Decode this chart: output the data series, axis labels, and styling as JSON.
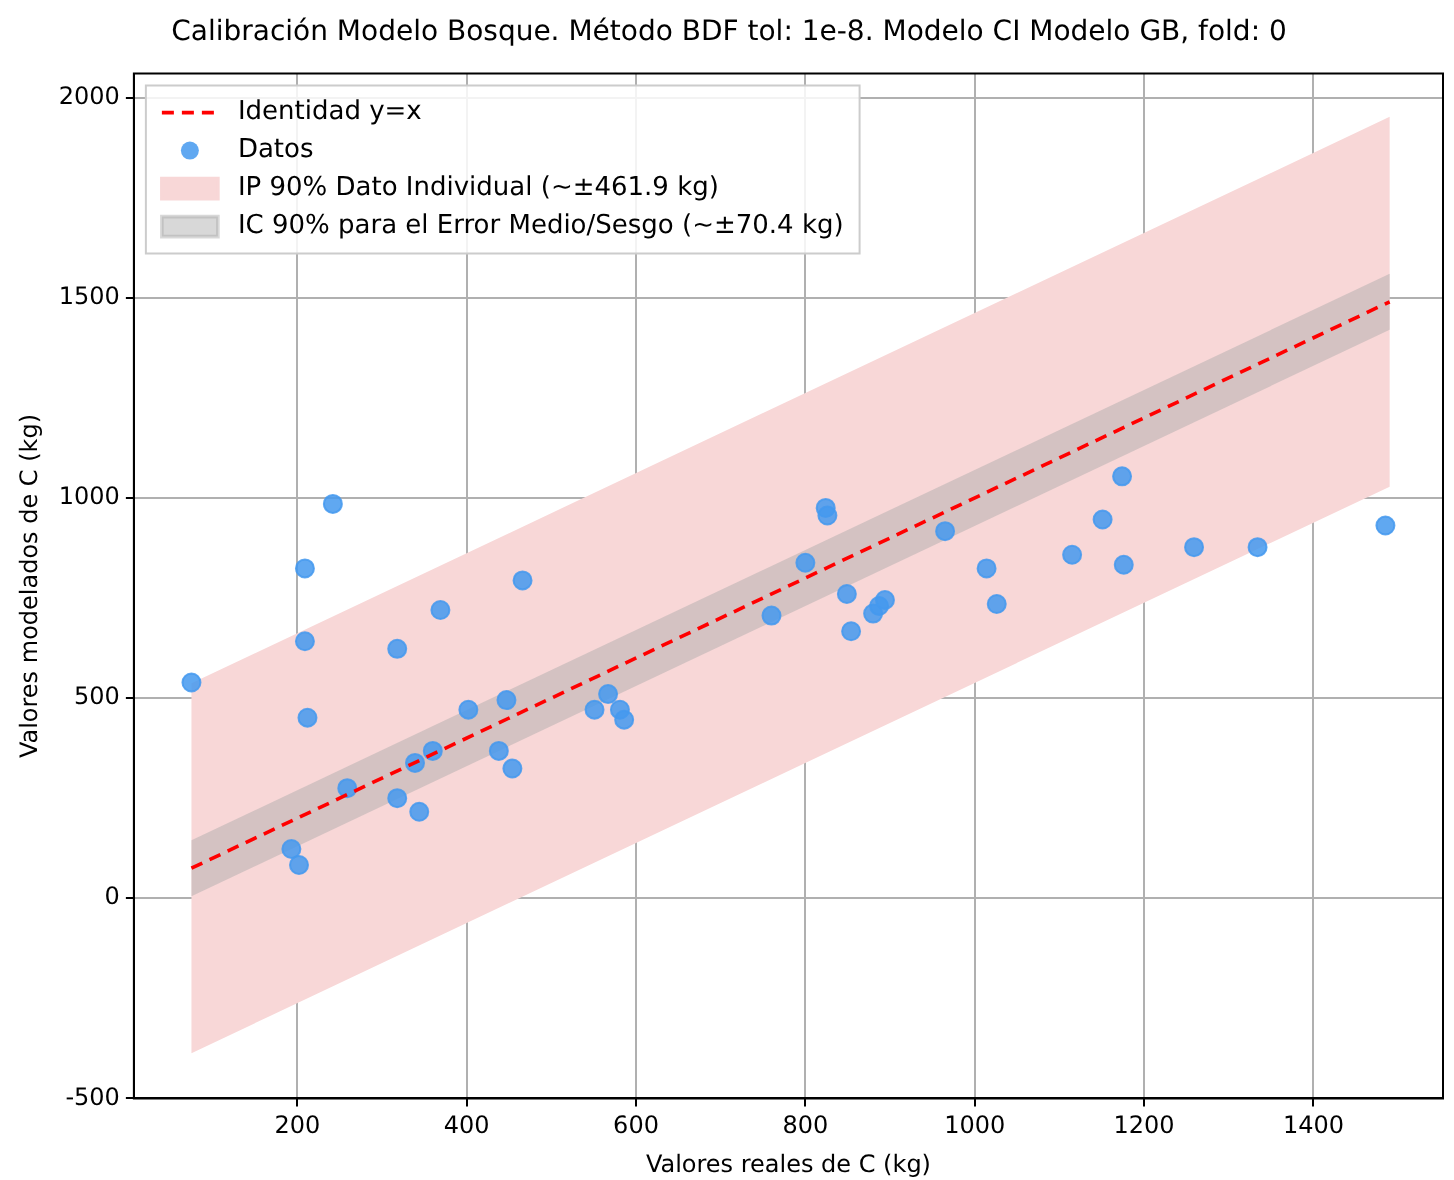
{
  "chart_data": {
    "type": "scatter",
    "title": "Calibración Modelo Bosque. Método BDF tol: 1e-8. Modelo CI Modelo GB, fold: 0",
    "xlabel": "Valores reales de C (kg)",
    "ylabel": "Valores modelados de C (kg)",
    "xlim": [
      7,
      1553
    ],
    "ylim": [
      -500,
      2060
    ],
    "xticks": [
      200,
      400,
      600,
      800,
      1000,
      1200,
      1400
    ],
    "yticks": [
      -500,
      0,
      500,
      1000,
      1500,
      2000
    ],
    "grid": true,
    "legend": "top left",
    "series": [
      {
        "name": "Identidad y=x",
        "type": "line",
        "color": "#ff0000",
        "line_style": "dashed",
        "marker": "none",
        "x": [
          75,
          1490
        ],
        "values": [
          75,
          1490
        ]
      },
      {
        "name": "Datos",
        "type": "scatter",
        "color": "#4499ee",
        "marker": "circle",
        "x": [
          75,
          193,
          202,
          209,
          209,
          212,
          242,
          259,
          318,
          318,
          339,
          344,
          369,
          360,
          402,
          438,
          447,
          454,
          466,
          551,
          567,
          581,
          586,
          760,
          800,
          824,
          826,
          849,
          854,
          880,
          887,
          894,
          965,
          1014,
          1026,
          1115,
          1151,
          1176,
          1174,
          1259,
          1334,
          1485
        ],
        "values": [
          539,
          123,
          83,
          824,
          642,
          451,
          985,
          275,
          250,
          623,
          338,
          216,
          720,
          368,
          471,
          368,
          495,
          324,
          794,
          471,
          510,
          471,
          446,
          706,
          838,
          975,
          956,
          760,
          667,
          711,
          730,
          745,
          917,
          824,
          735,
          858,
          946,
          833,
          1054,
          877,
          877,
          931
        ]
      },
      {
        "name": "IP 90% Dato Individual (~±461.9 kg)",
        "type": "area",
        "color": "#f8d7d7",
        "x": [
          75,
          1490,
          1490,
          75
        ],
        "values": [
          537,
          1952,
          1028,
          -387
        ]
      },
      {
        "name": "IC 90% para el Error Medio/Sesgo (~±70.4 kg)",
        "type": "area",
        "color": "#a9a9a9",
        "x": [
          75,
          1490,
          1490,
          75
        ],
        "values": [
          145,
          1560,
          1420,
          5
        ]
      }
    ]
  }
}
